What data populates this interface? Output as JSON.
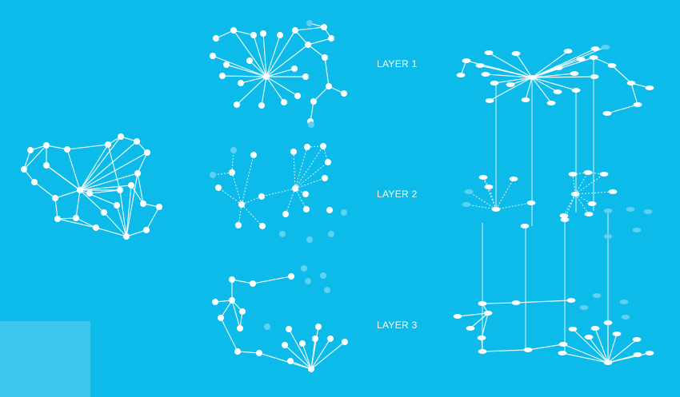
{
  "labels": {
    "layer1": "LAYER 1",
    "layer2": "LAYER 2",
    "layer3": "LAYER 3"
  },
  "colors": {
    "background": "#0cbbe9",
    "node": "#ffffff",
    "edge": "#ffffff",
    "ghost_node": "#5fd1f2",
    "corner_patch": "#3cc6ee"
  }
}
